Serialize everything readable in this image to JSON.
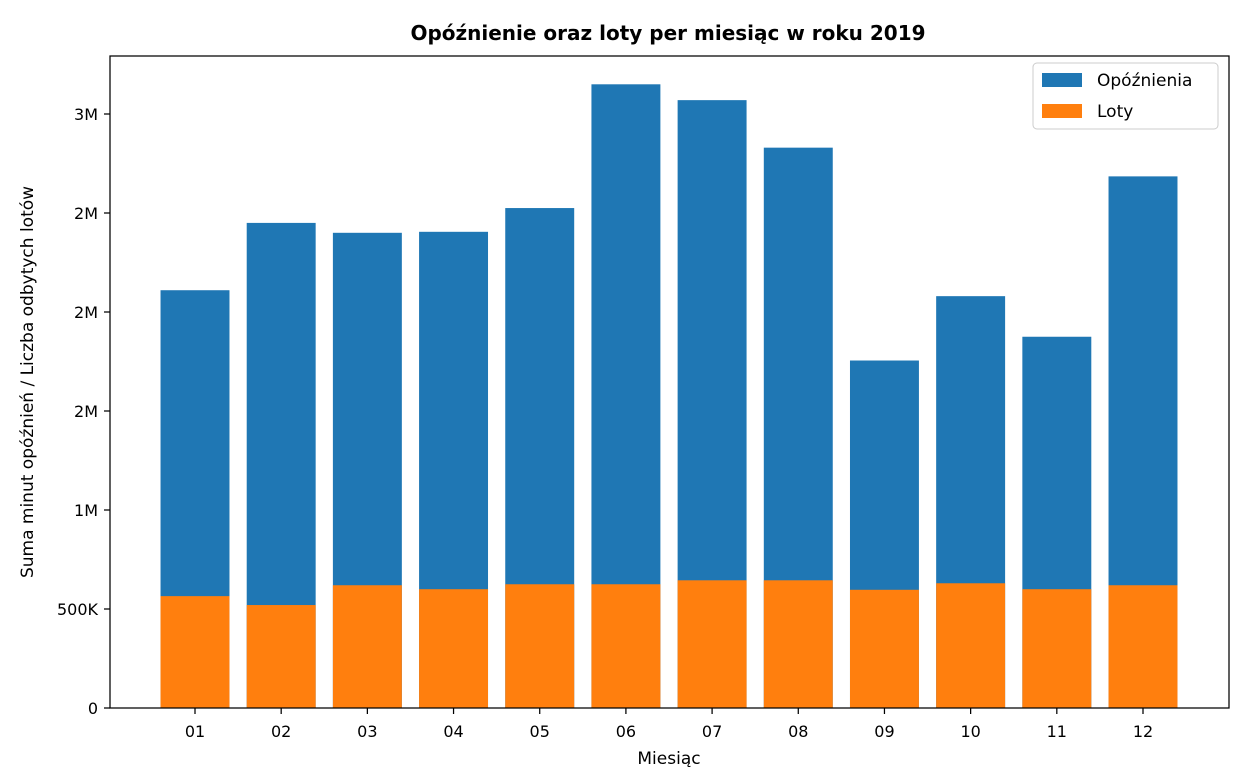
{
  "chart_data": {
    "type": "bar",
    "stacking": "overlay",
    "title": "Opóźnienie oraz loty per miesiąc w roku 2019",
    "xlabel": "Miesiąc",
    "ylabel": "Suma minut opóźnień / Liczba odbytych lotów",
    "categories": [
      "01",
      "02",
      "03",
      "04",
      "05",
      "06",
      "07",
      "08",
      "09",
      "10",
      "11",
      "12"
    ],
    "ylim": [
      0,
      3300000
    ],
    "yticks": [
      {
        "value": 0,
        "label": "0"
      },
      {
        "value": 500000,
        "label": "500K"
      },
      {
        "value": 1000000,
        "label": "1M"
      },
      {
        "value": 1500000,
        "label": "2M"
      },
      {
        "value": 2000000,
        "label": "2M"
      },
      {
        "value": 2500000,
        "label": "2M"
      },
      {
        "value": 3000000,
        "label": "3M"
      }
    ],
    "series": [
      {
        "name": "Opóźnienia",
        "color": "#1f77b4",
        "values": [
          2110000,
          2450000,
          2400000,
          2405000,
          2525000,
          3150000,
          3070000,
          2830000,
          1755000,
          2080000,
          1875000,
          2685000
        ]
      },
      {
        "name": "Loty",
        "color": "#ff7f0e",
        "values": [
          565000,
          520000,
          620000,
          600000,
          625000,
          625000,
          645000,
          645000,
          597000,
          630000,
          600000,
          620000
        ]
      }
    ],
    "legend_position": "top-right",
    "grid": false
  }
}
